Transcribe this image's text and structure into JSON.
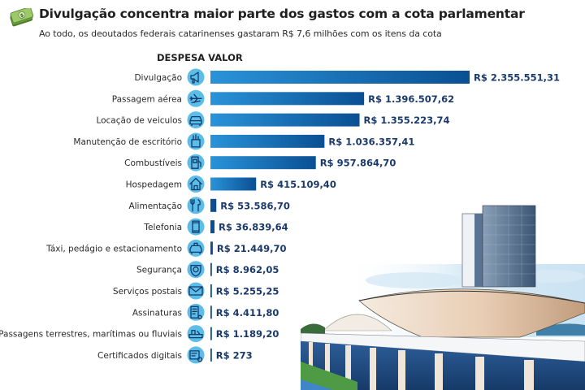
{
  "header": {
    "title": "Divulgação concentra maior parte dos gastos com a cota parlamentar",
    "subtitle": "Ao todo, os deoutados federais catarinenses gastaram R$ 7,6 milhões com os itens da cota",
    "icon": "money-bills-icon"
  },
  "colors": {
    "bar_light": "#2a93d8",
    "bar_dark": "#0a4f93",
    "icon_circle": "#5cbde9",
    "icon_glyph": "#123a6a",
    "value_text": "#1a3a6b"
  },
  "chart_data": {
    "type": "bar",
    "orientation": "horizontal",
    "title": "Divulgação concentra maior parte dos gastos com a cota parlamentar",
    "subtitle": "Ao todo, os deoutados federais catarinenses gastaram R$ 7,6 milhões com os itens da cota",
    "column_header": "DESPESA VALOR",
    "xlabel": "",
    "ylabel": "",
    "grid": false,
    "legend": "none",
    "xlim": [
      0,
      2355551.31
    ],
    "categories": [
      "Divulgação",
      "Passagem aérea",
      "Locação de veiculos",
      "Manutenção de escritório",
      "Combustíveis",
      "Hospedagem",
      "Alimentação",
      "Telefonia",
      "Táxi, pedágio e estacionamento",
      "Segurança",
      "Serviços postais",
      "Assinaturas",
      "Passagens terrestres, marítimas ou fluviais",
      "Certificados digitais"
    ],
    "icons": [
      "megaphone-icon",
      "airplane-icon",
      "car-icon",
      "office-supplies-icon",
      "fuel-pump-icon",
      "house-icon",
      "cutlery-icon",
      "smartphone-icon",
      "taxi-icon",
      "security-badge-icon",
      "envelope-icon",
      "subscription-document-icon",
      "ticket-transport-icon",
      "digital-certificate-icon"
    ],
    "values": [
      2355551.31,
      1396507.62,
      1355223.74,
      1036357.41,
      957864.7,
      415109.4,
      53586.7,
      36839.64,
      21449.7,
      8962.05,
      5255.25,
      4411.8,
      1189.2,
      273
    ],
    "value_labels": [
      "R$ 2.355.551,31",
      "R$ 1.396.507,62",
      "R$ 1.355.223,74",
      "R$ 1.036.357,41",
      "R$ 957.864,70",
      "R$ 415.109,40",
      "R$ 53.586,70",
      "R$ 36.839,64",
      "R$ 21.449,70",
      "R$ 8.962,05",
      "R$ 5.255,25",
      "R$ 4.411,80",
      "R$ 1.189,20",
      "R$ 273"
    ]
  },
  "illustration": {
    "subject": "national-congress-building-illustration"
  }
}
